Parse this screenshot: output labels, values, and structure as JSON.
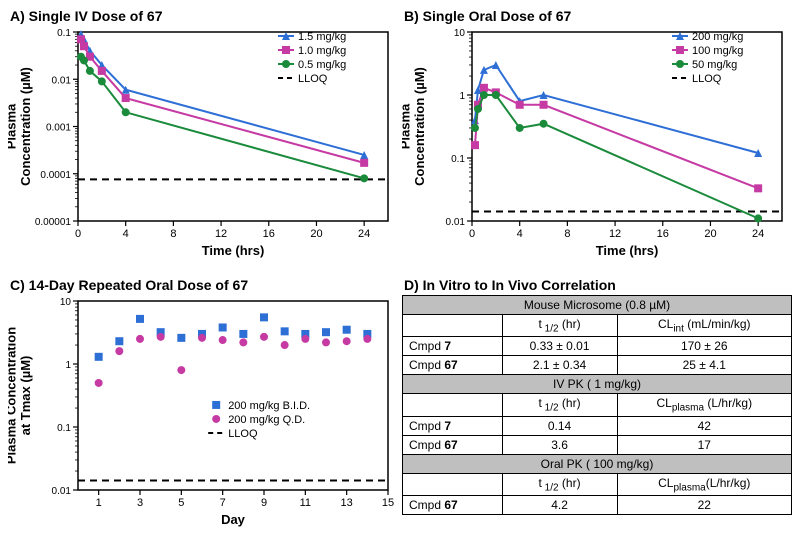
{
  "panelA": {
    "title_prefix": "A) ",
    "title_text": "Single IV Dose of ",
    "compound": "67",
    "xlabel": "Time (hrs)",
    "ylabel_l1": "Plasma",
    "ylabel_l2": "Concentration (µM)",
    "xlim": [
      0,
      26
    ],
    "xticks": [
      0,
      4,
      8,
      12,
      16,
      20,
      24
    ],
    "ylim_exp": [
      -5,
      -1
    ],
    "yticks_exp": [
      -5,
      -4,
      -3,
      -2,
      -1
    ],
    "ytick_labels": [
      "0.00001",
      "0.0001",
      "0.001",
      "0.01",
      "0.1"
    ],
    "lloq_exp": -4.12,
    "series": [
      {
        "label": "1.5 mg/kg",
        "color": "#2e6fd6",
        "marker": "triangle",
        "x": [
          0.25,
          0.5,
          1,
          2,
          4,
          24
        ],
        "y": [
          0.09,
          0.07,
          0.04,
          0.02,
          0.006,
          0.00025
        ]
      },
      {
        "label": "1.0 mg/kg",
        "color": "#c63aa3",
        "marker": "square",
        "x": [
          0.25,
          0.5,
          1,
          2,
          4,
          24
        ],
        "y": [
          0.07,
          0.05,
          0.03,
          0.015,
          0.004,
          0.00017
        ]
      },
      {
        "label": "0.5 mg/kg",
        "color": "#1a8a3b",
        "marker": "circle",
        "x": [
          0.25,
          0.5,
          1,
          2,
          4,
          24
        ],
        "y": [
          0.03,
          0.025,
          0.015,
          0.009,
          0.002,
          8e-05
        ]
      }
    ],
    "legend": [
      "1.5 mg/kg",
      "1.0 mg/kg",
      "0.5 mg/kg",
      "LLOQ"
    ]
  },
  "panelB": {
    "title_prefix": "B) ",
    "title_text": "Single Oral Dose of ",
    "compound": "67",
    "xlabel": "Time (hrs)",
    "ylabel_l1": "Plasma",
    "ylabel_l2": "Concentration (µM)",
    "xlim": [
      0,
      26
    ],
    "xticks": [
      0,
      4,
      8,
      12,
      16,
      20,
      24
    ],
    "ylim_exp": [
      -2,
      1
    ],
    "yticks_exp": [
      -2,
      -1,
      0,
      1
    ],
    "ytick_labels": [
      "0.01",
      "0.1",
      "1",
      "10"
    ],
    "lloq_exp": -1.85,
    "series": [
      {
        "label": "200 mg/kg",
        "color": "#2e6fd6",
        "marker": "triangle",
        "x": [
          0.25,
          0.5,
          1,
          2,
          4,
          6,
          24
        ],
        "y": [
          0.4,
          1.2,
          2.5,
          3.0,
          0.8,
          1.0,
          0.12
        ]
      },
      {
        "label": "100 mg/kg",
        "color": "#c63aa3",
        "marker": "square",
        "x": [
          0.25,
          0.5,
          1,
          2,
          4,
          6,
          24
        ],
        "y": [
          0.16,
          0.7,
          1.3,
          1.1,
          0.7,
          0.7,
          0.033
        ]
      },
      {
        "label": "50 mg/kg",
        "color": "#1a8a3b",
        "marker": "circle",
        "x": [
          0.25,
          0.5,
          1,
          2,
          4,
          6,
          24
        ],
        "y": [
          0.3,
          0.6,
          1.0,
          1.0,
          0.3,
          0.35,
          0.011
        ]
      }
    ],
    "legend": [
      "200 mg/kg",
      "100 mg/kg",
      "50 mg/kg",
      "LLOQ"
    ]
  },
  "panelC": {
    "title_prefix": "C) ",
    "title_text": "14-Day Repeated Oral Dose of ",
    "compound": "67",
    "xlabel": "Day",
    "ylabel_l1": "Plasma Concentration",
    "ylabel_l2": "at Tmax (µM)",
    "xlim": [
      0,
      15
    ],
    "xticks": [
      1,
      3,
      5,
      7,
      9,
      11,
      13,
      15
    ],
    "ylim_exp": [
      -2,
      1
    ],
    "yticks_exp": [
      -2,
      -1,
      0,
      1
    ],
    "ytick_labels": [
      "0.01",
      "0.1",
      "1",
      "10"
    ],
    "lloq_exp": -1.85,
    "series": [
      {
        "label": "200 mg/kg B.I.D.",
        "color": "#2e6fd6",
        "marker": "square",
        "x": [
          1,
          2,
          3,
          4,
          5,
          6,
          7,
          8,
          9,
          10,
          11,
          12,
          13,
          14
        ],
        "y": [
          1.3,
          2.3,
          5.2,
          3.2,
          2.6,
          3.0,
          3.8,
          3.0,
          5.5,
          3.3,
          3.0,
          3.2,
          3.5,
          3.0
        ]
      },
      {
        "label": "200 mg/kg Q.D.",
        "color": "#c63aa3",
        "marker": "circle",
        "x": [
          1,
          2,
          3,
          4,
          5,
          6,
          7,
          8,
          9,
          10,
          11,
          12,
          13,
          14
        ],
        "y": [
          0.5,
          1.6,
          2.5,
          2.7,
          0.8,
          2.6,
          2.4,
          2.2,
          2.7,
          2.0,
          2.5,
          2.2,
          2.3,
          2.5
        ]
      }
    ],
    "legend": [
      "200 mg/kg B.I.D.",
      "200 mg/kg Q.D.",
      "LLOQ"
    ]
  },
  "panelD": {
    "title_prefix": "D) ",
    "title_text": "In Vitro to In Vivo Correlation",
    "sections": [
      {
        "header": "Mouse Microsome (0.8 µM)",
        "col1": "t",
        "col1_sub": "1/2",
        "col1_unit": " (hr)",
        "col2": "CL",
        "col2_sub": "int",
        "col2_unit": " (mL/min/kg)",
        "rows": [
          {
            "label": "Cmpd 7",
            "c1": "0.33 ± 0.01",
            "c2": "170 ± 26"
          },
          {
            "label": "Cmpd 67",
            "c1": "2.1 ± 0.34",
            "c2": "25 ± 4.1"
          }
        ]
      },
      {
        "header": "IV PK ( 1 mg/kg)",
        "col1": "t",
        "col1_sub": "1/2",
        "col1_unit": " (hr)",
        "col2": "CL",
        "col2_sub": "plasma",
        "col2_unit": " (L/hr/kg)",
        "rows": [
          {
            "label": "Cmpd 7",
            "c1": "0.14",
            "c2": "42"
          },
          {
            "label": "Cmpd 67",
            "c1": "3.6",
            "c2": "17"
          }
        ]
      },
      {
        "header": "Oral PK ( 100 mg/kg)",
        "col1": "t",
        "col1_sub": "1/2",
        "col1_unit": " (hr)",
        "col2": "CL",
        "col2_sub": "plasma",
        "col2_unit": "(L/hr/kg)",
        "rows": [
          {
            "label": "Cmpd 67",
            "c1": "4.2",
            "c2": "22"
          }
        ]
      }
    ]
  },
  "colors": {
    "axis": "#000000",
    "lloq": "#000000"
  }
}
